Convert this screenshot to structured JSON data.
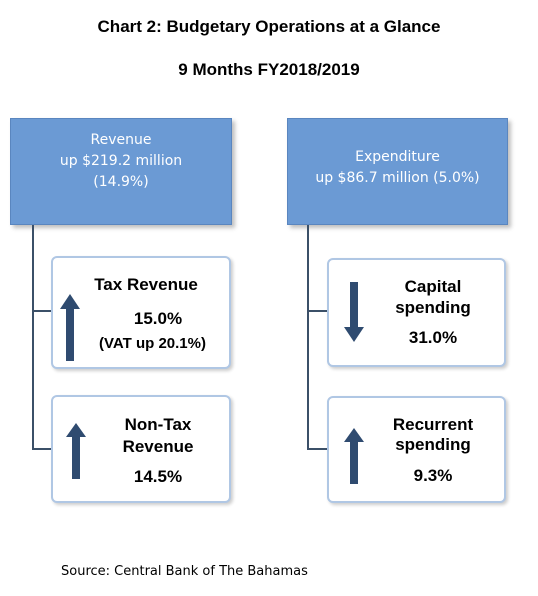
{
  "title": {
    "line1": "Chart 2: Budgetary Operations at a Glance",
    "line2": "9 Months FY2018/2019"
  },
  "revenue": {
    "label": "Revenue",
    "change": "up $219.2 million",
    "percent": "(14.9%)",
    "tax": {
      "name": "Tax Revenue",
      "value": "15.0%",
      "note": "(VAT up 20.1%)",
      "direction": "up"
    },
    "nontax": {
      "name_line1": "Non-Tax",
      "name_line2": "Revenue",
      "value": "14.5%",
      "direction": "up"
    }
  },
  "expenditure": {
    "label": "Expenditure",
    "change": "up $86.7 million (5.0%)",
    "capital": {
      "name_line1": "Capital",
      "name_line2": "spending",
      "value": "31.0%",
      "direction": "down"
    },
    "recurrent": {
      "name_line1": "Recurrent",
      "name_line2": "spending",
      "value": "9.3%",
      "direction": "up"
    }
  },
  "source": "Source: Central Bank of The Bahamas",
  "colors": {
    "header_fill": "#6b9ad4",
    "arrow_fill": "#2f4b70",
    "sub_border": "#b0c7e4"
  }
}
